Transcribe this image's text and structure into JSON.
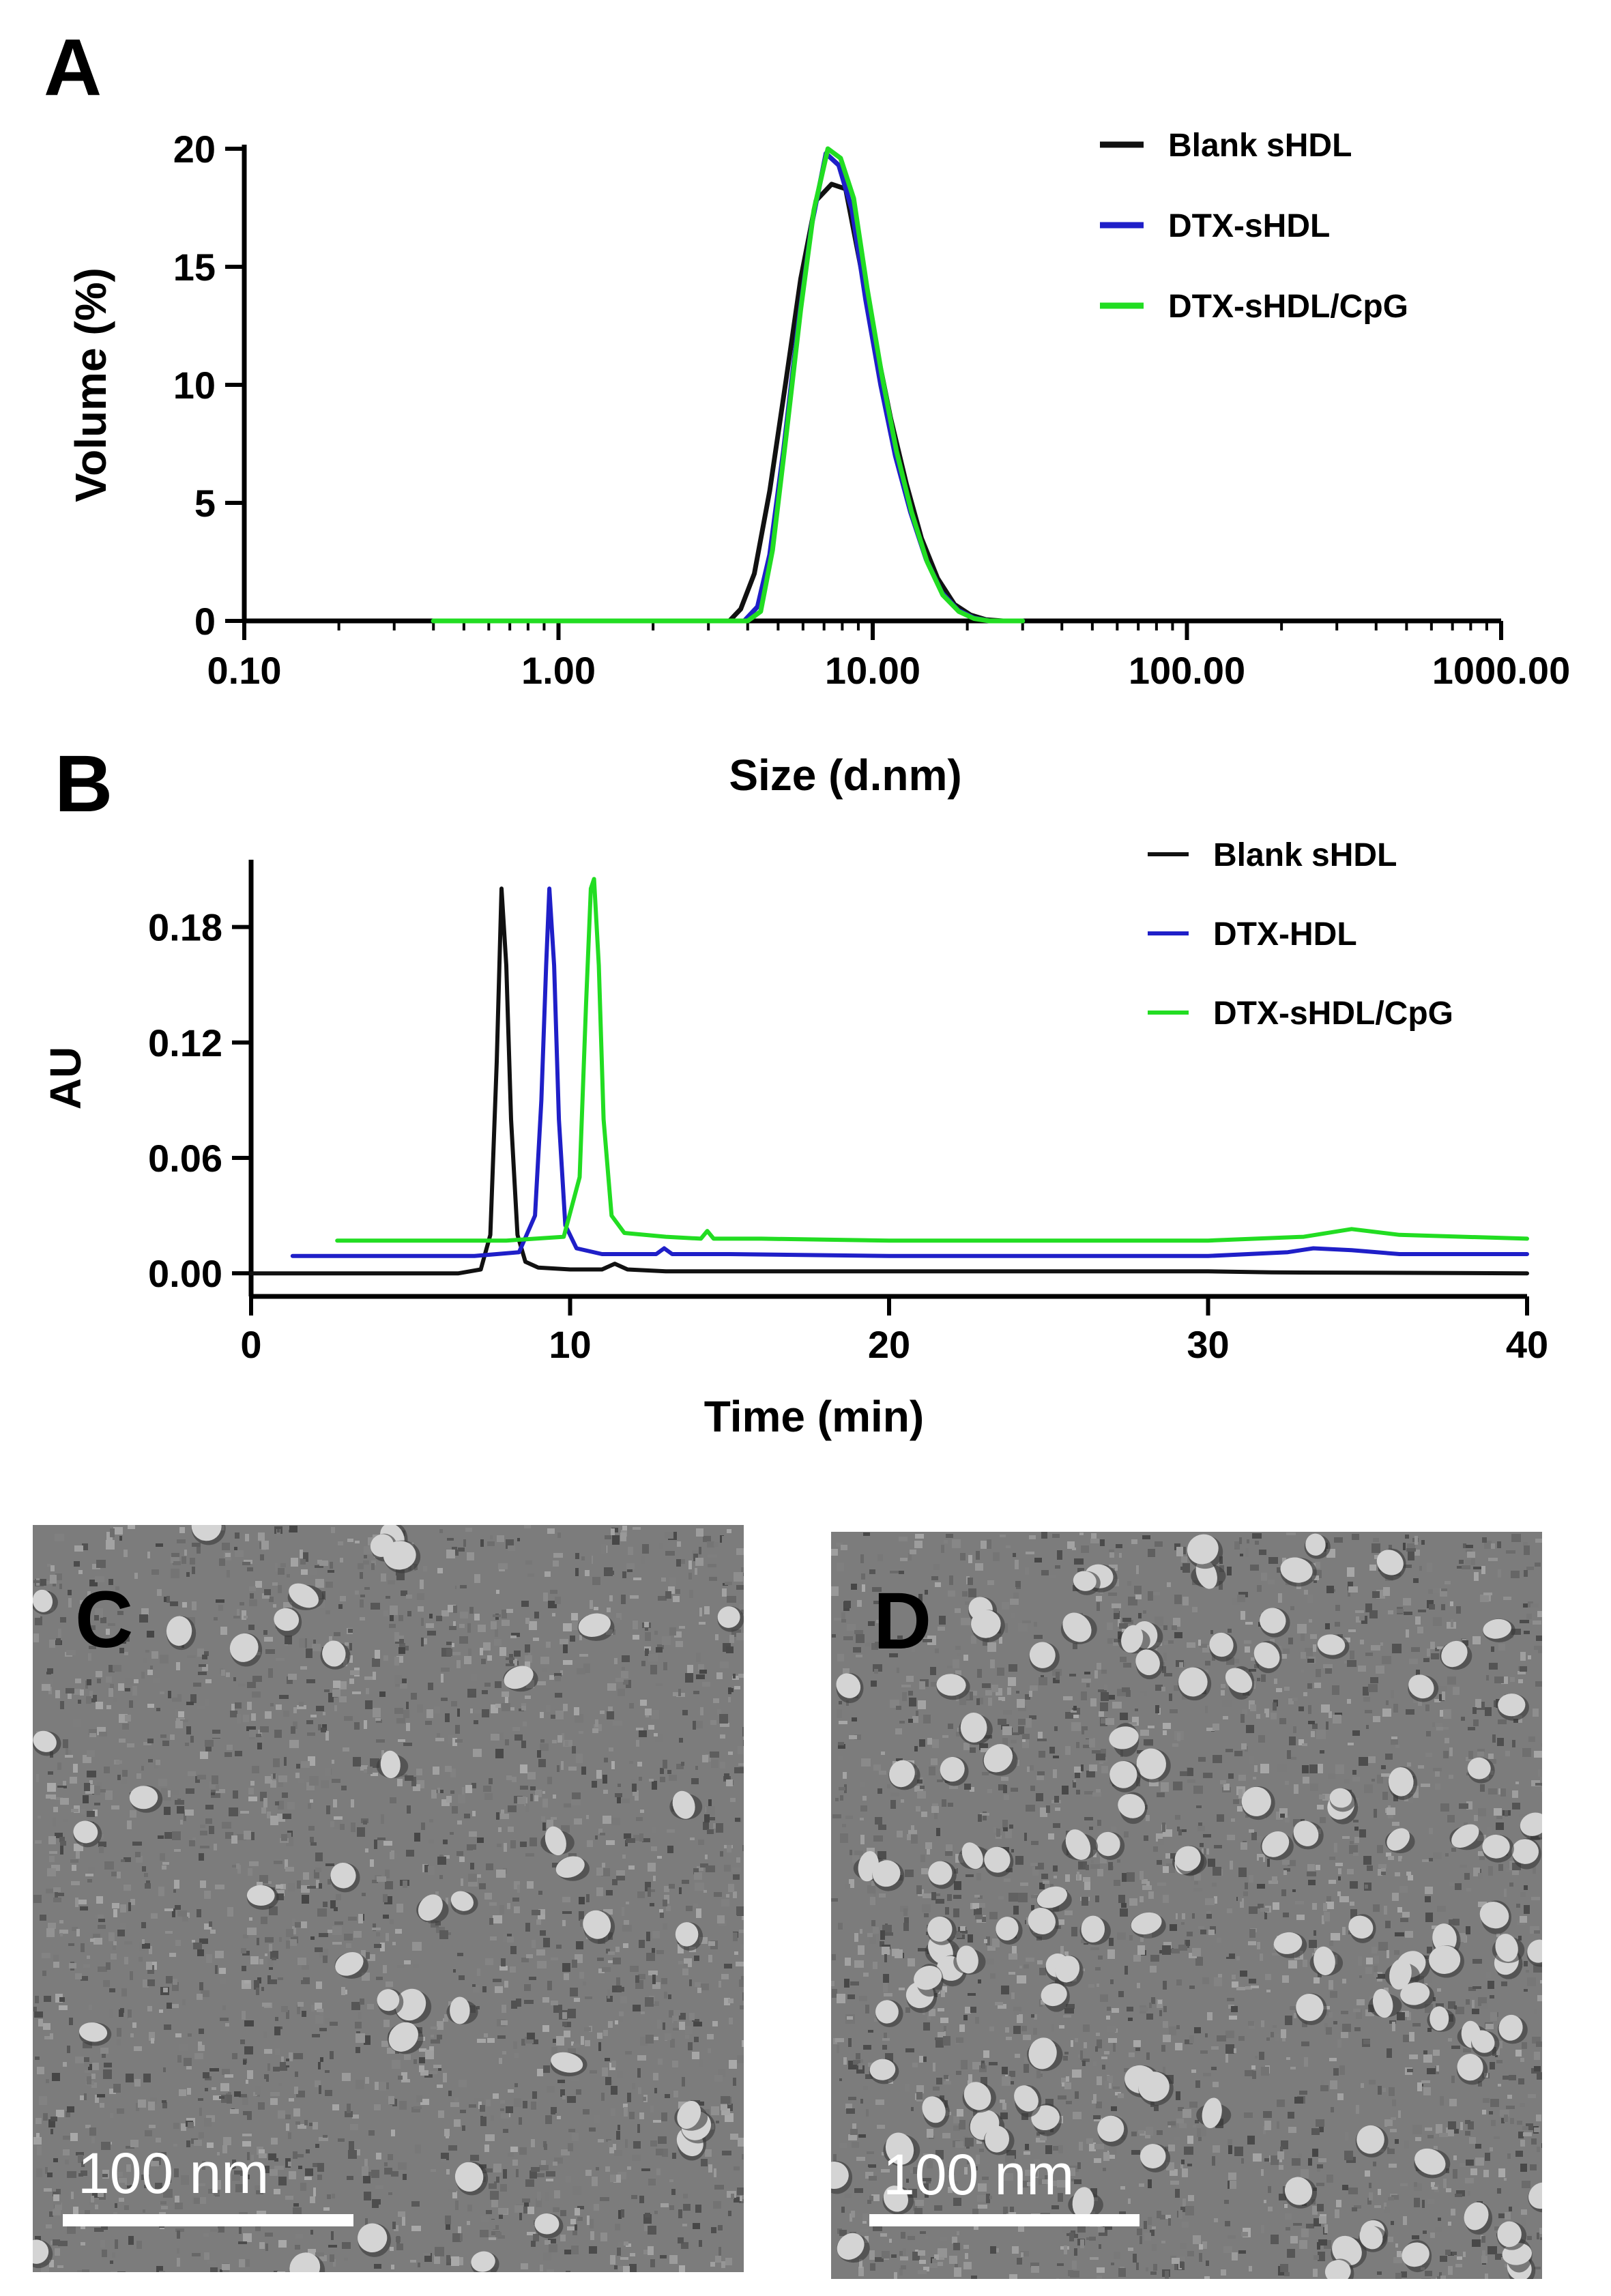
{
  "panels": {
    "a": "A",
    "b": "B",
    "c": "C",
    "d": "D"
  },
  "colors": {
    "black": "#111111",
    "blue": "#1f1fc8",
    "green": "#22dd22"
  },
  "chart_data": [
    {
      "type": "line",
      "panel": "A",
      "title": "",
      "xlabel": "Size (d.nm)",
      "ylabel": "Volume (%)",
      "xscale": "log",
      "xlim": [
        0.1,
        1000
      ],
      "ylim": [
        0,
        20
      ],
      "xticks": [
        0.1,
        1,
        10,
        100,
        1000
      ],
      "xtick_labels": [
        "0.10",
        "1.00",
        "10.00",
        "100.00",
        "1000.00"
      ],
      "yticks": [
        0,
        5,
        10,
        15,
        20
      ],
      "ytick_labels": [
        "0",
        "5",
        "10",
        "15",
        "20"
      ],
      "legend_position": "top-right",
      "series": [
        {
          "name": "Blank sHDL",
          "color": "#111111",
          "x": [
            0.4,
            3.5,
            3.8,
            4.2,
            4.7,
            5.3,
            5.9,
            6.6,
            7.4,
            8.2,
            9.1,
            10.2,
            11.4,
            12.8,
            14.3,
            16.1,
            18.2,
            20.5,
            23.0,
            26.0,
            30.0
          ],
          "y": [
            0,
            0,
            0.5,
            2.0,
            5.5,
            10.2,
            14.5,
            17.8,
            18.5,
            18.3,
            15.2,
            11.8,
            8.6,
            5.8,
            3.5,
            1.8,
            0.7,
            0.25,
            0.05,
            0,
            0
          ]
        },
        {
          "name": "DTX-sHDL",
          "color": "#1f1fc8",
          "x": [
            0.4,
            3.9,
            4.3,
            4.7,
            5.2,
            5.8,
            6.4,
            7.1,
            7.8,
            8.6,
            9.5,
            10.6,
            11.8,
            13.2,
            14.8,
            16.6,
            18.7,
            21.0,
            23.5,
            26.5,
            30.0
          ],
          "y": [
            0,
            0,
            0.6,
            2.8,
            7.2,
            12.6,
            16.8,
            19.8,
            19.3,
            17.4,
            13.6,
            10.0,
            7.0,
            4.6,
            2.6,
            1.2,
            0.45,
            0.12,
            0,
            0,
            0
          ]
        },
        {
          "name": "DTX-sHDL/CpG",
          "color": "#22dd22",
          "x": [
            0.4,
            4.0,
            4.4,
            4.8,
            5.3,
            5.9,
            6.5,
            7.2,
            7.9,
            8.7,
            9.6,
            10.7,
            11.9,
            13.3,
            14.9,
            16.7,
            18.8,
            21.0,
            23.5,
            26.5,
            30.0
          ],
          "y": [
            0,
            0,
            0.4,
            3.0,
            7.8,
            13.2,
            17.4,
            20.0,
            19.6,
            17.9,
            14.1,
            10.4,
            7.2,
            4.6,
            2.5,
            1.1,
            0.4,
            0.1,
            0,
            0,
            0
          ]
        }
      ]
    },
    {
      "type": "line",
      "panel": "B",
      "title": "",
      "xlabel": "Time (min)",
      "ylabel": "AU",
      "xlim": [
        0,
        40
      ],
      "ylim": [
        -0.012,
        0.215
      ],
      "xticks": [
        0,
        10,
        20,
        30,
        40
      ],
      "xtick_labels": [
        "0",
        "10",
        "20",
        "30",
        "40"
      ],
      "yticks": [
        0,
        0.06,
        0.12,
        0.18
      ],
      "ytick_labels": [
        "0.00",
        "0.06",
        "0.12",
        "0.18"
      ],
      "legend_position": "top-right",
      "series": [
        {
          "name": "Blank sHDL",
          "color": "#111111",
          "x": [
            0,
            6.5,
            7.2,
            7.5,
            7.7,
            7.85,
            8.0,
            8.15,
            8.35,
            8.6,
            9.0,
            10.0,
            11.0,
            11.4,
            11.8,
            13,
            20,
            30,
            32,
            40
          ],
          "y": [
            0.0,
            0.0,
            0.002,
            0.02,
            0.11,
            0.2,
            0.16,
            0.08,
            0.02,
            0.006,
            0.003,
            0.002,
            0.002,
            0.005,
            0.002,
            0.001,
            0.001,
            0.001,
            0.0005,
            0.0
          ]
        },
        {
          "name": "DTX-HDL",
          "color": "#1f1fc8",
          "x": [
            1.3,
            7.0,
            8.4,
            8.9,
            9.1,
            9.25,
            9.35,
            9.5,
            9.65,
            9.85,
            10.2,
            11,
            12.7,
            12.95,
            13.2,
            15,
            20,
            30,
            32.5,
            33.3,
            34.5,
            36,
            40
          ],
          "y": [
            0.009,
            0.009,
            0.011,
            0.03,
            0.09,
            0.16,
            0.2,
            0.16,
            0.08,
            0.025,
            0.013,
            0.01,
            0.01,
            0.013,
            0.01,
            0.01,
            0.009,
            0.009,
            0.011,
            0.013,
            0.012,
            0.01,
            0.01
          ]
        },
        {
          "name": "DTX-sHDL/CpG",
          "color": "#22dd22",
          "x": [
            2.7,
            8.0,
            9.8,
            10.3,
            10.5,
            10.65,
            10.75,
            10.9,
            11.05,
            11.3,
            11.7,
            13.0,
            14.1,
            14.3,
            14.5,
            16,
            20,
            30,
            33.0,
            34.5,
            36,
            40
          ],
          "y": [
            0.017,
            0.017,
            0.019,
            0.05,
            0.14,
            0.2,
            0.205,
            0.16,
            0.08,
            0.03,
            0.021,
            0.019,
            0.018,
            0.022,
            0.018,
            0.018,
            0.017,
            0.017,
            0.019,
            0.023,
            0.02,
            0.018
          ]
        }
      ]
    }
  ],
  "tem": {
    "c": {
      "letter": "C",
      "scale_label": "100 nm"
    },
    "d": {
      "letter": "D",
      "scale_label": "100 nm"
    }
  }
}
